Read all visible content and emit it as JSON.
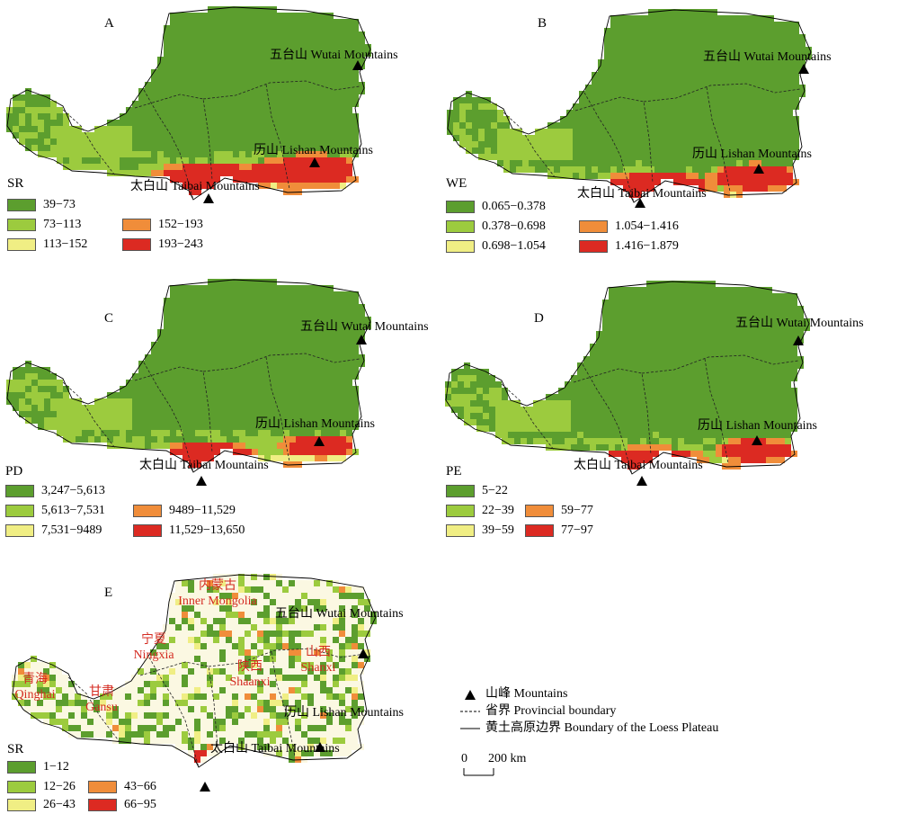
{
  "panels": [
    {
      "id": "A",
      "legend_title": "SR",
      "classes": [
        "39−73",
        "73−113",
        "113−152",
        "152−193",
        "193−243"
      ]
    },
    {
      "id": "B",
      "legend_title": "WE",
      "classes": [
        "0.065−0.378",
        "0.378−0.698",
        "0.698−1.054",
        "1.054−1.416",
        "1.416−1.879"
      ]
    },
    {
      "id": "C",
      "legend_title": "PD",
      "classes": [
        "3,247−5,613",
        "5,613−7,531",
        "7,531−9489",
        "9489−11,529",
        "11,529−13,650"
      ]
    },
    {
      "id": "D",
      "legend_title": "PE",
      "classes": [
        "5−22",
        "22−39",
        "39−59",
        "59−77",
        "77−97"
      ]
    },
    {
      "id": "E",
      "legend_title": "SR",
      "classes": [
        "1−12",
        "12−26",
        "26−43",
        "43−66",
        "66−95"
      ]
    }
  ],
  "mountains": {
    "wutai": "五台山 Wutai Mountains",
    "lishan": "历山 Lishan Mountains",
    "taibai": "太白山 Taibai Mountains"
  },
  "provinces": {
    "inner_mongolia": {
      "zh": "内蒙古",
      "en": "Inner Mongolia"
    },
    "ningxia": {
      "zh": "宁夏",
      "en": "Ningxia"
    },
    "qinghai": {
      "zh": "青海",
      "en": "Qinghai"
    },
    "gansu": {
      "zh": "甘肃",
      "en": "Gansu"
    },
    "shaanxi": {
      "zh": "陕西",
      "en": "Shaanxi"
    },
    "shanxi": {
      "zh": "山西",
      "en": "Shanxi"
    }
  },
  "key": {
    "mountains": "山峰 Mountains",
    "provincial_boundary": "省界 Provincial boundary",
    "plateau_boundary": "黄土高原边界 Boundary of the Loess Plateau"
  },
  "scale": {
    "zero": "0",
    "distance": "200 km"
  },
  "colors": {
    "class1": "#5c9e2e",
    "class2": "#9ccb3e",
    "class3": "#f0ee84",
    "class4": "#f08d3a",
    "class5": "#dc2a22",
    "background_E": "#fbf8e2"
  }
}
